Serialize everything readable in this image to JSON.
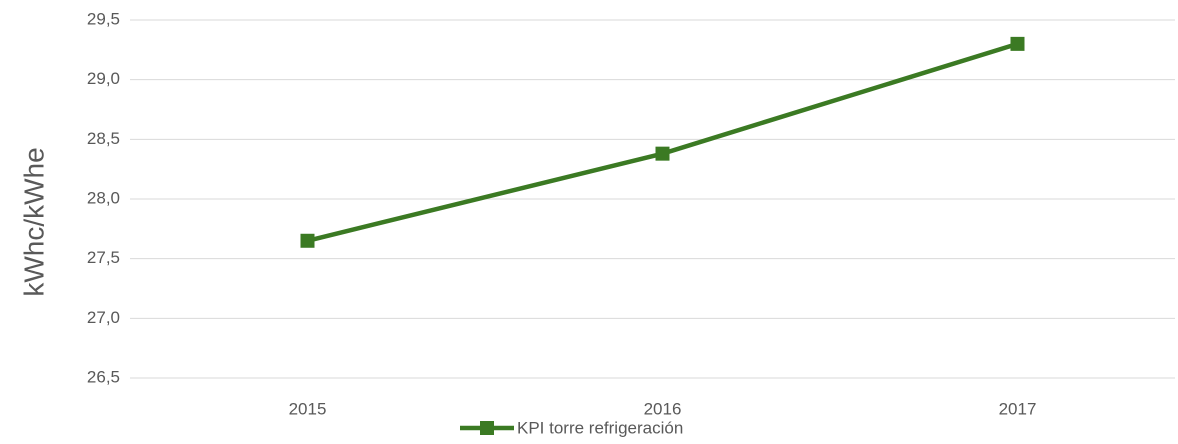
{
  "chart_data": {
    "type": "line",
    "y_label": "kWhc/kWhe",
    "categories": [
      "2015",
      "2016",
      "2017"
    ],
    "series": [
      {
        "name": "KPI torre refrigeración",
        "color": "#3b7a23",
        "values": [
          27.65,
          28.38,
          29.3
        ]
      }
    ],
    "ylim": [
      26.5,
      29.5
    ],
    "yticks": [
      {
        "value": 26.5,
        "label": "26,5"
      },
      {
        "value": 27,
        "label": "27,0"
      },
      {
        "value": 27.5,
        "label": "27,5"
      },
      {
        "value": 28,
        "label": "28,0"
      },
      {
        "value": 28.5,
        "label": "28,5"
      },
      {
        "value": 29,
        "label": "29,0"
      },
      {
        "value": 29.5,
        "label": "29,5"
      }
    ],
    "grid": true,
    "legend": "bottom"
  }
}
